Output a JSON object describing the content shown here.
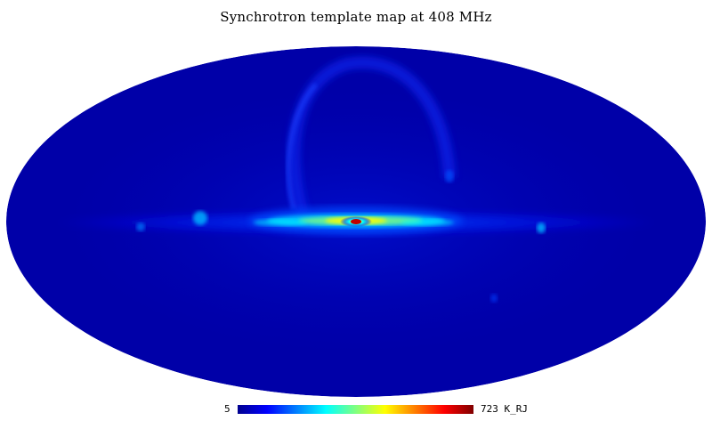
{
  "map": {
    "title": "Synchrotron template map at 408 MHz",
    "projection": "mollweide",
    "background_color": "#00008f",
    "colorbar": {
      "min_label": "5",
      "max_label": "723 K_RJ",
      "colormap": "jet",
      "colors": [
        "#00008f",
        "#0000ff",
        "#0080ff",
        "#00ffff",
        "#80ff80",
        "#ffff00",
        "#ff8000",
        "#ff0000",
        "#800000"
      ]
    }
  }
}
